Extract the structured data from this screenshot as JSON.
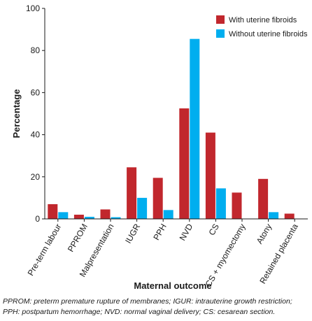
{
  "chart_data": {
    "type": "bar",
    "categories": [
      "Pre-term labour",
      "PPROM",
      "Malpresentation",
      "IUGR",
      "PPH",
      "NVD",
      "CS",
      "CS + myomectomy",
      "Atony",
      "Retained placenta"
    ],
    "series": [
      {
        "name": "With uterine fibroids",
        "color": "#c1272d",
        "values": [
          7,
          2,
          4.5,
          24.5,
          19.5,
          52.5,
          41,
          12.5,
          19,
          2.5
        ]
      },
      {
        "name": "Without uterine fibroids",
        "color": "#00aeef",
        "values": [
          3.2,
          1,
          0.8,
          10,
          4.2,
          85.5,
          14.5,
          0,
          3.2,
          0
        ]
      }
    ],
    "xlabel": "Maternal outcome",
    "ylabel": "Percentage",
    "ylim": [
      0,
      100
    ],
    "yticks": [
      0,
      20,
      40,
      60,
      80,
      100
    ],
    "grid": false,
    "legend_position": "top-right"
  },
  "footnote": "PPROM: preterm premature rupture of membranes; IGUR: intrauterine growth restriction; PPH: postpartum hemorrhage; NVD: normal vaginal delivery; CS: cesarean section."
}
